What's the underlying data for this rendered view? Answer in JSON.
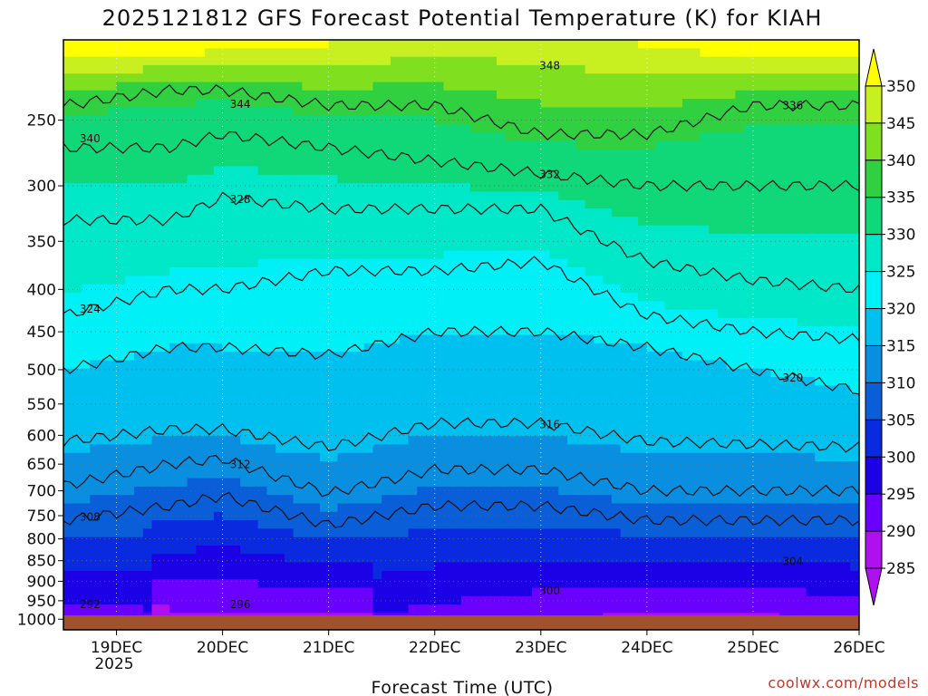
{
  "page": {
    "title": "2025121812 GFS Forecast Potential Temperature (K) for KIAH",
    "credit": "coolwx.com/models"
  },
  "chart_data": {
    "type": "heatmap",
    "title": "2025121812 GFS Forecast Potential Temperature (K) for KIAH",
    "xlabel": "Forecast Time (UTC)",
    "ylabel": "",
    "x_ticks": [
      "19DEC",
      "20DEC",
      "21DEC",
      "22DEC",
      "23DEC",
      "24DEC",
      "25DEC",
      "26DEC"
    ],
    "x_year_label": "2025",
    "x_range": [
      "2025-12-18 12Z",
      "2025-12-26 00Z"
    ],
    "y_ticks": [
      250,
      300,
      350,
      400,
      450,
      500,
      550,
      600,
      650,
      700,
      750,
      800,
      850,
      900,
      950,
      1000
    ],
    "y_range_hPa": [
      200,
      1030
    ],
    "y_scale": "log-pressure (inverted)",
    "grid": true,
    "colorbar_ticks": [
      285,
      290,
      295,
      300,
      305,
      310,
      315,
      320,
      325,
      330,
      335,
      340,
      345,
      350
    ],
    "colorbar_colors": [
      "#b010f0",
      "#6a00ff",
      "#1c00e6",
      "#0a2ae0",
      "#0a5ed8",
      "#0a8fe0",
      "#00c0f0",
      "#00f0f8",
      "#00e8c8",
      "#10d878",
      "#30d040",
      "#80e020",
      "#c8f020",
      "#ffff00"
    ],
    "contour_interval_K": 4,
    "contour_labels_shown": [
      292,
      296,
      300,
      304,
      308,
      312,
      316,
      320,
      324,
      328,
      332,
      336,
      340,
      344,
      348
    ],
    "surface_fill_color": "#a0522d",
    "series": [
      {
        "x": [
          "2025-12-18 12Z",
          "2025-12-19 12Z",
          "2025-12-20 00Z",
          "2025-12-21 00Z",
          "2025-12-22 00Z",
          "2025-12-23 00Z",
          "2025-12-24 00Z",
          "2025-12-25 00Z",
          "2025-12-26 00Z"
        ],
        "levels": {
          "308": [
            760,
            730,
            710,
            770,
            730,
            730,
            760,
            760,
            760
          ],
          "312": [
            690,
            650,
            640,
            705,
            660,
            660,
            700,
            700,
            700
          ],
          "316": [
            610,
            590,
            590,
            620,
            580,
            580,
            610,
            615,
            620
          ],
          "320": [
            500,
            470,
            470,
            480,
            450,
            450,
            470,
            500,
            530
          ],
          "324": [
            430,
            400,
            400,
            380,
            380,
            370,
            430,
            450,
            460
          ],
          "328": [
            330,
            330,
            310,
            320,
            320,
            320,
            370,
            390,
            400
          ],
          "332": [
            270,
            270,
            260,
            270,
            280,
            290,
            300,
            300,
            300
          ],
          "336": [
            240,
            230,
            230,
            240,
            240,
            260,
            260,
            240,
            240
          ]
        }
      }
    ]
  }
}
